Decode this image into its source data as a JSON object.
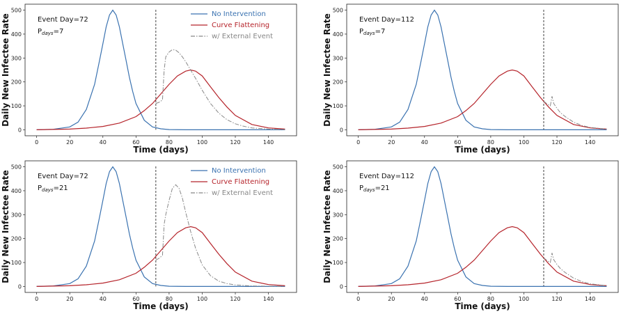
{
  "figure": {
    "colors": {
      "no_intervention": "#3a72b0",
      "curve_flattening": "#b5232a",
      "external_event": "#888888",
      "event_line": "#111111"
    }
  },
  "chart_data": [
    {
      "type": "line",
      "xlabel": "Time (days)",
      "ylabel": "Daily New Infectee Rate",
      "xlim": [
        -7,
        157
      ],
      "ylim": [
        -25,
        525
      ],
      "xticks": [
        0,
        20,
        40,
        60,
        80,
        100,
        120,
        140
      ],
      "yticks": [
        0,
        100,
        200,
        300,
        400,
        500
      ],
      "grid": false,
      "legend_position": "top-right",
      "annotation_line1": "Event Day=72",
      "annotation_p_prefix": "P",
      "annotation_p_sub": "days",
      "annotation_p_value": "=7",
      "event_day": 72,
      "series": [
        {
          "name": "No Intervention",
          "style": "solid",
          "x": [
            0,
            10,
            20,
            25,
            30,
            35,
            38,
            40,
            42,
            44,
            46,
            48,
            50,
            52,
            54,
            56,
            58,
            60,
            65,
            70,
            75,
            80,
            90,
            100,
            120,
            150
          ],
          "y": [
            0,
            2,
            12,
            32,
            85,
            190,
            290,
            360,
            430,
            480,
            500,
            480,
            430,
            360,
            290,
            220,
            160,
            110,
            40,
            12,
            4,
            1,
            0,
            0,
            0,
            0
          ]
        },
        {
          "name": "Curve Flattening",
          "style": "solid",
          "x": [
            0,
            20,
            30,
            40,
            50,
            60,
            65,
            70,
            75,
            80,
            85,
            90,
            93,
            96,
            100,
            105,
            110,
            115,
            120,
            130,
            140,
            150
          ],
          "y": [
            0,
            3,
            7,
            14,
            28,
            55,
            80,
            110,
            150,
            190,
            225,
            245,
            250,
            245,
            225,
            180,
            135,
            95,
            60,
            22,
            8,
            3
          ]
        },
        {
          "name": "w/ External Event",
          "style": "dashdot",
          "x": [
            72,
            74,
            76,
            77,
            78,
            80,
            82,
            84,
            86,
            88,
            90,
            93,
            96,
            100,
            105,
            110,
            115,
            120,
            125,
            130,
            140,
            150
          ],
          "y": [
            110,
            115,
            125,
            250,
            305,
            325,
            335,
            333,
            322,
            305,
            285,
            250,
            215,
            165,
            110,
            70,
            42,
            25,
            15,
            8,
            3,
            1
          ]
        }
      ]
    },
    {
      "type": "line",
      "xlabel": "Time (days)",
      "ylabel": "Daily New Infectee Rate",
      "xlim": [
        -7,
        157
      ],
      "ylim": [
        -25,
        525
      ],
      "xticks": [
        0,
        20,
        40,
        60,
        80,
        100,
        120,
        140
      ],
      "yticks": [
        0,
        100,
        200,
        300,
        400,
        500
      ],
      "grid": false,
      "legend_position": "none",
      "annotation_line1": "Event Day=112",
      "annotation_p_prefix": "P",
      "annotation_p_sub": "days",
      "annotation_p_value": "=7",
      "event_day": 112,
      "series": [
        {
          "name": "No Intervention",
          "style": "solid",
          "x": [
            0,
            10,
            20,
            25,
            30,
            35,
            38,
            40,
            42,
            44,
            46,
            48,
            50,
            52,
            54,
            56,
            58,
            60,
            65,
            70,
            75,
            80,
            90,
            100,
            120,
            150
          ],
          "y": [
            0,
            2,
            12,
            32,
            85,
            190,
            290,
            360,
            430,
            480,
            500,
            480,
            430,
            360,
            290,
            220,
            160,
            110,
            40,
            12,
            4,
            1,
            0,
            0,
            0,
            0
          ]
        },
        {
          "name": "Curve Flattening",
          "style": "solid",
          "x": [
            0,
            20,
            30,
            40,
            50,
            60,
            65,
            70,
            75,
            80,
            85,
            90,
            93,
            96,
            100,
            105,
            110,
            115,
            120,
            130,
            140,
            150
          ],
          "y": [
            0,
            3,
            7,
            14,
            28,
            55,
            80,
            110,
            150,
            190,
            225,
            245,
            250,
            245,
            225,
            180,
            135,
            95,
            60,
            22,
            8,
            3
          ]
        },
        {
          "name": "w/ External Event",
          "style": "dashdot",
          "x": [
            112,
            114,
            116,
            117,
            118,
            120,
            122,
            125,
            130,
            135,
            140,
            150
          ],
          "y": [
            120,
            108,
            100,
            140,
            110,
            90,
            72,
            55,
            32,
            18,
            10,
            3
          ]
        }
      ]
    },
    {
      "type": "line",
      "xlabel": "Time (days)",
      "ylabel": "Daily New Infectee Rate",
      "xlim": [
        -7,
        157
      ],
      "ylim": [
        -25,
        525
      ],
      "xticks": [
        0,
        20,
        40,
        60,
        80,
        100,
        120,
        140
      ],
      "yticks": [
        0,
        100,
        200,
        300,
        400,
        500
      ],
      "grid": false,
      "legend_position": "top-right",
      "annotation_line1": "Event Day=72",
      "annotation_p_prefix": "P",
      "annotation_p_sub": "days",
      "annotation_p_value": "=21",
      "event_day": 72,
      "series": [
        {
          "name": "No Intervention",
          "style": "solid",
          "x": [
            0,
            10,
            20,
            25,
            30,
            35,
            38,
            40,
            42,
            44,
            46,
            48,
            50,
            52,
            54,
            56,
            58,
            60,
            65,
            70,
            75,
            80,
            90,
            100,
            120,
            150
          ],
          "y": [
            0,
            2,
            12,
            32,
            85,
            190,
            290,
            360,
            430,
            480,
            500,
            480,
            430,
            360,
            290,
            220,
            160,
            110,
            40,
            12,
            4,
            1,
            0,
            0,
            0,
            0
          ]
        },
        {
          "name": "Curve Flattening",
          "style": "solid",
          "x": [
            0,
            20,
            30,
            40,
            50,
            60,
            65,
            70,
            75,
            80,
            85,
            90,
            93,
            96,
            100,
            105,
            110,
            115,
            120,
            130,
            140,
            150
          ],
          "y": [
            0,
            3,
            7,
            14,
            28,
            55,
            80,
            110,
            150,
            190,
            225,
            245,
            250,
            245,
            225,
            180,
            135,
            95,
            60,
            22,
            8,
            3
          ]
        },
        {
          "name": "w/ External Event",
          "style": "dashdot",
          "x": [
            72,
            74,
            76,
            77,
            78,
            80,
            82,
            84,
            86,
            88,
            90,
            93,
            96,
            100,
            105,
            110,
            115,
            120,
            130,
            140,
            150
          ],
          "y": [
            110,
            118,
            130,
            260,
            300,
            360,
            410,
            425,
            410,
            370,
            310,
            230,
            160,
            90,
            45,
            22,
            12,
            6,
            2,
            1,
            0
          ]
        }
      ]
    },
    {
      "type": "line",
      "xlabel": "Time (days)",
      "ylabel": "Daily New Infectee Rate",
      "xlim": [
        -7,
        157
      ],
      "ylim": [
        -25,
        525
      ],
      "xticks": [
        0,
        20,
        40,
        60,
        80,
        100,
        120,
        140
      ],
      "yticks": [
        0,
        100,
        200,
        300,
        400,
        500
      ],
      "grid": false,
      "legend_position": "none",
      "annotation_line1": "Event Day=112",
      "annotation_p_prefix": "P",
      "annotation_p_sub": "days",
      "annotation_p_value": "=21",
      "event_day": 112,
      "series": [
        {
          "name": "No Intervention",
          "style": "solid",
          "x": [
            0,
            10,
            20,
            25,
            30,
            35,
            38,
            40,
            42,
            44,
            46,
            48,
            50,
            52,
            54,
            56,
            58,
            60,
            65,
            70,
            75,
            80,
            90,
            100,
            120,
            150
          ],
          "y": [
            0,
            2,
            12,
            32,
            85,
            190,
            290,
            360,
            430,
            480,
            500,
            480,
            430,
            360,
            290,
            220,
            160,
            110,
            40,
            12,
            4,
            1,
            0,
            0,
            0,
            0
          ]
        },
        {
          "name": "Curve Flattening",
          "style": "solid",
          "x": [
            0,
            20,
            30,
            40,
            50,
            60,
            65,
            70,
            75,
            80,
            85,
            90,
            93,
            96,
            100,
            105,
            110,
            115,
            120,
            130,
            140,
            150
          ],
          "y": [
            0,
            3,
            7,
            14,
            28,
            55,
            80,
            110,
            150,
            190,
            225,
            245,
            250,
            245,
            225,
            180,
            135,
            95,
            60,
            22,
            8,
            3
          ]
        },
        {
          "name": "w/ External Event",
          "style": "dashdot",
          "x": [
            112,
            114,
            116,
            117,
            118,
            120,
            122,
            125,
            130,
            135,
            140,
            150
          ],
          "y": [
            120,
            108,
            100,
            140,
            112,
            92,
            75,
            58,
            35,
            20,
            11,
            3
          ]
        }
      ]
    }
  ]
}
